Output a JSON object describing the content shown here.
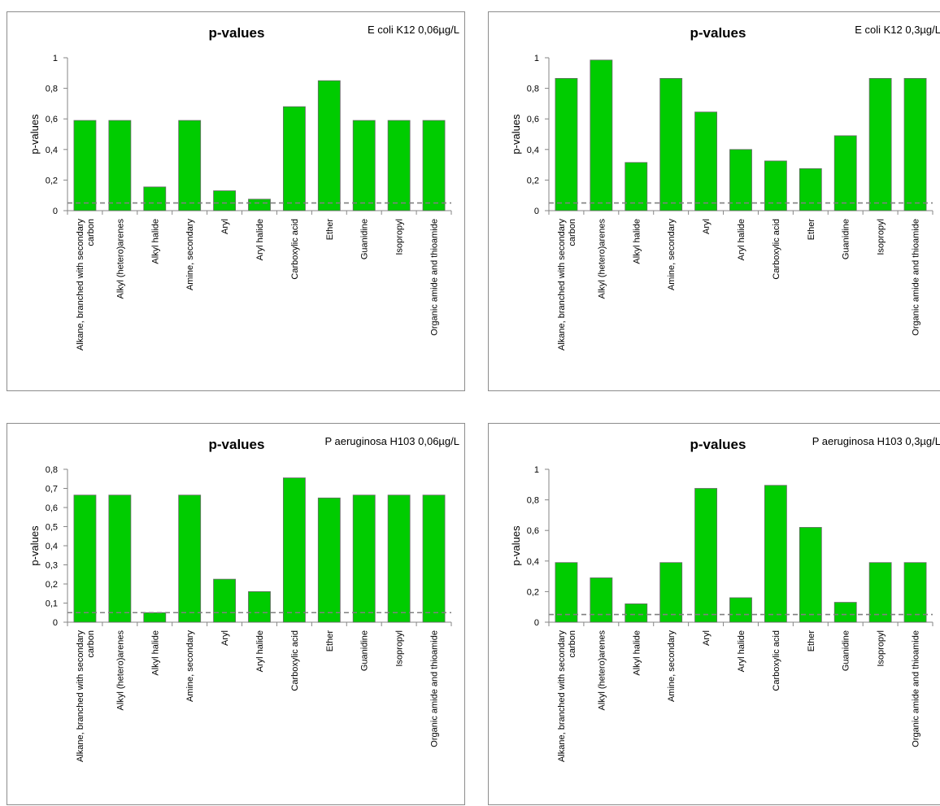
{
  "chart_data": [
    {
      "type": "bar",
      "title": "p-values",
      "corner_label": "E coli K12  0,06µg/L",
      "ylabel": "p-values",
      "xlabel": "",
      "ylim": [
        0,
        1
      ],
      "yticks": [
        "0",
        "0,2",
        "0,4",
        "0,6",
        "0,8",
        "1"
      ],
      "categories": [
        [
          "Alkane, branched with secondary",
          "carbon"
        ],
        [
          "Alkyl (hetero)arenes"
        ],
        [
          "Alkyl halide"
        ],
        [
          "Amine, secondary"
        ],
        [
          "Aryl"
        ],
        [
          "Aryl halide"
        ],
        [
          "Carboxylic acid"
        ],
        [
          "Ether"
        ],
        [
          "Guanidine"
        ],
        [
          "Isopropyl"
        ],
        [
          "Organic amide and thioamide"
        ]
      ],
      "values": [
        0.59,
        0.59,
        0.155,
        0.59,
        0.13,
        0.075,
        0.68,
        0.85,
        0.59,
        0.59,
        0.59
      ],
      "threshold": 0.05,
      "bar_color": "#00cc00",
      "threshold_color": "#808080"
    },
    {
      "type": "bar",
      "title": "p-values",
      "corner_label": "E coli K12  0,3µg/L",
      "ylabel": "p-values",
      "xlabel": "",
      "ylim": [
        0,
        1
      ],
      "yticks": [
        "0",
        "0,2",
        "0,4",
        "0,6",
        "0,8",
        "1"
      ],
      "categories": [
        [
          "Alkane, branched with secondary",
          "carbon"
        ],
        [
          "Alkyl (hetero)arenes"
        ],
        [
          "Alkyl halide"
        ],
        [
          "Amine, secondary"
        ],
        [
          "Aryl"
        ],
        [
          "Aryl halide"
        ],
        [
          "Carboxylic acid"
        ],
        [
          "Ether"
        ],
        [
          "Guanidine"
        ],
        [
          "Isopropyl"
        ],
        [
          "Organic amide and thioamide"
        ]
      ],
      "values": [
        0.865,
        0.985,
        0.315,
        0.865,
        0.645,
        0.4,
        0.325,
        0.275,
        0.49,
        0.865,
        0.865
      ],
      "threshold": 0.05,
      "bar_color": "#00cc00",
      "threshold_color": "#808080"
    },
    {
      "type": "bar",
      "title": "p-values",
      "corner_label": "P aeruginosa H103  0,06µg/L",
      "ylabel": "p-values",
      "xlabel": "",
      "ylim": [
        0,
        0.8
      ],
      "yticks": [
        "0",
        "0,1",
        "0,2",
        "0,3",
        "0,4",
        "0,5",
        "0,6",
        "0,7",
        "0,8"
      ],
      "categories": [
        [
          "Alkane, branched with secondary",
          "carbon"
        ],
        [
          "Alkyl (hetero)arenes"
        ],
        [
          "Alkyl halide"
        ],
        [
          "Amine, secondary"
        ],
        [
          "Aryl"
        ],
        [
          "Aryl halide"
        ],
        [
          "Carboxylic acid"
        ],
        [
          "Ether"
        ],
        [
          "Guanidine"
        ],
        [
          "Isopropyl"
        ],
        [
          "Organic amide and thioamide"
        ]
      ],
      "values": [
        0.665,
        0.665,
        0.05,
        0.665,
        0.225,
        0.16,
        0.755,
        0.65,
        0.665,
        0.665,
        0.665
      ],
      "threshold": 0.05,
      "bar_color": "#00cc00",
      "threshold_color": "#808080"
    },
    {
      "type": "bar",
      "title": "p-values",
      "corner_label": "P aeruginosa H103  0,3µg/L",
      "ylabel": "p-values",
      "xlabel": "",
      "ylim": [
        0,
        1
      ],
      "yticks": [
        "0",
        "0,2",
        "0,4",
        "0,6",
        "0,8",
        "1"
      ],
      "categories": [
        [
          "Alkane, branched with secondary",
          "carbon"
        ],
        [
          "Alkyl (hetero)arenes"
        ],
        [
          "Alkyl halide"
        ],
        [
          "Amine, secondary"
        ],
        [
          "Aryl"
        ],
        [
          "Aryl halide"
        ],
        [
          "Carboxylic acid"
        ],
        [
          "Ether"
        ],
        [
          "Guanidine"
        ],
        [
          "Isopropyl"
        ],
        [
          "Organic amide and thioamide"
        ]
      ],
      "values": [
        0.39,
        0.29,
        0.12,
        0.39,
        0.875,
        0.16,
        0.895,
        0.62,
        0.13,
        0.39,
        0.39
      ],
      "threshold": 0.05,
      "bar_color": "#00cc00",
      "threshold_color": "#808080"
    }
  ]
}
